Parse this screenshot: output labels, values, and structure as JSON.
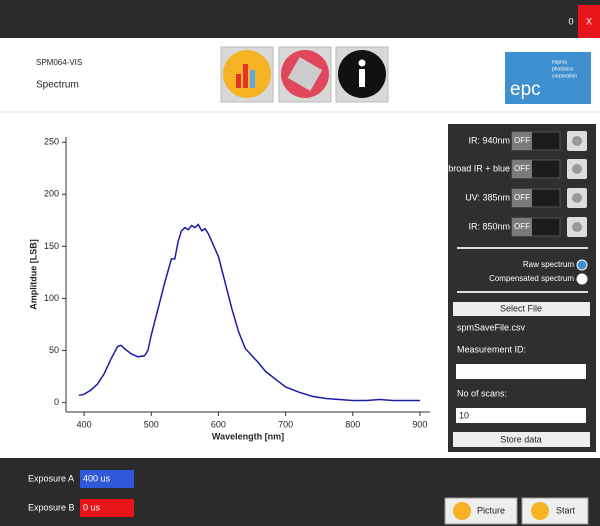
{
  "window": {
    "counter": "0",
    "close": "X"
  },
  "header": {
    "device": "SPM064-VIS",
    "mode": "Spectrum",
    "logo": {
      "main": "epc",
      "sub": [
        "espros",
        "photonics",
        "corporation"
      ]
    }
  },
  "chart_data": {
    "type": "line",
    "x_label": "Wavelength [nm]",
    "y_label": "Amplitdue [LSB]",
    "color": "#1c1ca8",
    "x": [
      392,
      400,
      410,
      420,
      430,
      440,
      450,
      455,
      460,
      470,
      480,
      490,
      495,
      500,
      510,
      520,
      530,
      535,
      540,
      545,
      550,
      555,
      560,
      565,
      570,
      575,
      580,
      585,
      590,
      600,
      610,
      620,
      630,
      640,
      650,
      660,
      670,
      680,
      690,
      700,
      720,
      740,
      760,
      780,
      800,
      820,
      840,
      860,
      880,
      900
    ],
    "values": [
      7,
      8,
      12,
      18,
      28,
      42,
      54,
      55,
      52,
      47,
      44,
      45,
      50,
      65,
      90,
      115,
      138,
      138,
      155,
      165,
      168,
      166,
      170,
      168,
      171,
      165,
      167,
      162,
      155,
      140,
      115,
      90,
      68,
      52,
      45,
      38,
      30,
      25,
      20,
      15,
      10,
      6,
      4,
      3,
      2,
      2,
      3,
      2,
      2,
      2
    ],
    "xlim": [
      373,
      915
    ],
    "ylim": [
      -9,
      255
    ],
    "xticks": [
      400,
      500,
      600,
      700,
      800,
      900
    ],
    "yticks": [
      0,
      50,
      100,
      150,
      200,
      250
    ]
  },
  "panel": {
    "toggles": [
      {
        "label": "IR: 940nm",
        "state": "OFF"
      },
      {
        "label": "broad IR + blue",
        "state": "OFF"
      },
      {
        "label": "UV: 385nm",
        "state": "OFF"
      },
      {
        "label": "IR: 850nm",
        "state": "OFF"
      }
    ],
    "radios": [
      {
        "label": "Raw spectrum",
        "selected": true
      },
      {
        "label": "Compensated spectrum",
        "selected": false
      }
    ],
    "select_file": "Select File",
    "file_name": "spmSaveFile.csv",
    "measurement_id_label": "Measurement ID:",
    "scans_label": "No of scans:",
    "scans": "10",
    "store": "Store data"
  },
  "footer": {
    "exposure_a": {
      "label": "Exposure A",
      "value": "400 us"
    },
    "exposure_b": {
      "label": "Exposure B",
      "value": "0 us"
    },
    "buttons": [
      "Picture",
      "Start"
    ]
  }
}
